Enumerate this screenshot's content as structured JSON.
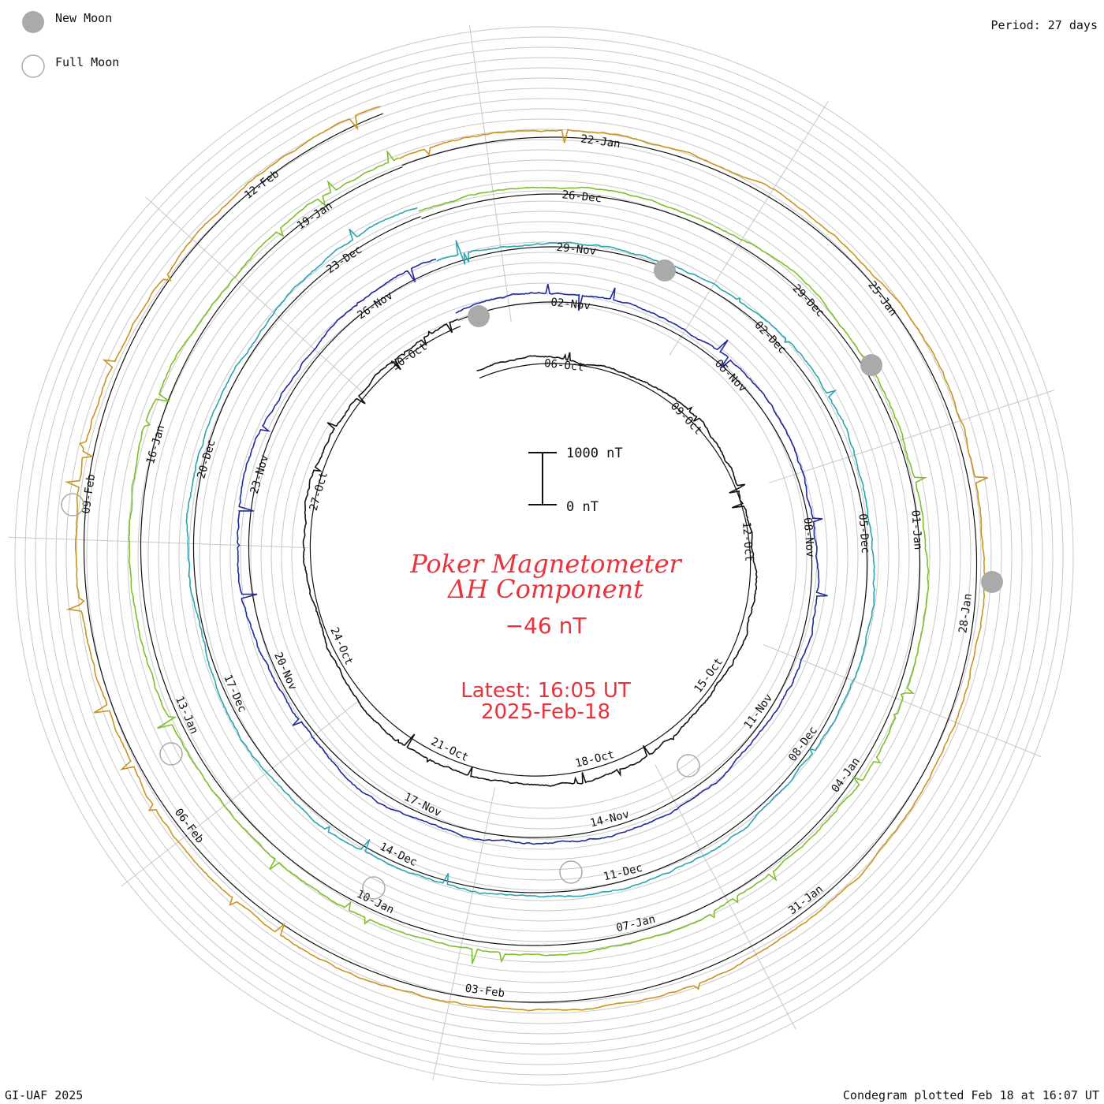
{
  "legend": {
    "new_moon": {
      "label": "New Moon",
      "color": "#aaaaaa"
    },
    "full_moon": {
      "label": "Full Moon",
      "color": "#aaaaaa"
    }
  },
  "period_text": "Period: 27 days",
  "footer": {
    "credit": "GI-UAF 2025",
    "plotted": "Condegram plotted Feb 18 at 16:07 UT"
  },
  "title": {
    "line1": "Poker Magnetometer",
    "line2": "ΔH Component",
    "value": "−46 nT",
    "latest": "Latest: 16:05 UT",
    "date": "2025-Feb-18"
  },
  "scale_bar": {
    "top_label": "1000 nT",
    "bottom_label": "0 nT"
  },
  "chart_data": {
    "type": "line",
    "title": "Poker Magnetometer ΔH Component",
    "period_days": 27,
    "series": [
      {
        "color": "#111111",
        "labels": [
          "06-Oct",
          "09-Oct",
          "12-Oct",
          "15-Oct",
          "18-Oct",
          "21-Oct",
          "24-Oct",
          "27-Oct",
          "30-Oct"
        ]
      },
      {
        "color": "#1f2a9c",
        "labels": [
          "02-Nov",
          "05-Nov",
          "08-Nov",
          "11-Nov",
          "14-Nov",
          "17-Nov",
          "20-Nov",
          "23-Nov",
          "26-Nov"
        ]
      },
      {
        "color": "#2aa6b0",
        "labels": [
          "29-Nov",
          "02-Dec",
          "05-Dec",
          "08-Dec",
          "11-Dec",
          "14-Dec",
          "17-Dec",
          "20-Dec",
          "23-Dec"
        ]
      },
      {
        "color": "#7fbf2a",
        "labels": [
          "26-Dec",
          "29-Dec",
          "01-Jan",
          "04-Jan",
          "07-Jan",
          "10-Jan",
          "13-Jan",
          "16-Jan",
          "19-Jan"
        ]
      },
      {
        "color": "#c8961e",
        "labels": [
          "22-Jan",
          "25-Jan",
          "28-Jan",
          "31-Jan",
          "03-Feb",
          "06-Feb",
          "09-Feb",
          "12-Feb"
        ]
      }
    ],
    "latest_value_nT": -46,
    "scale_nT": [
      0,
      1000
    ]
  }
}
